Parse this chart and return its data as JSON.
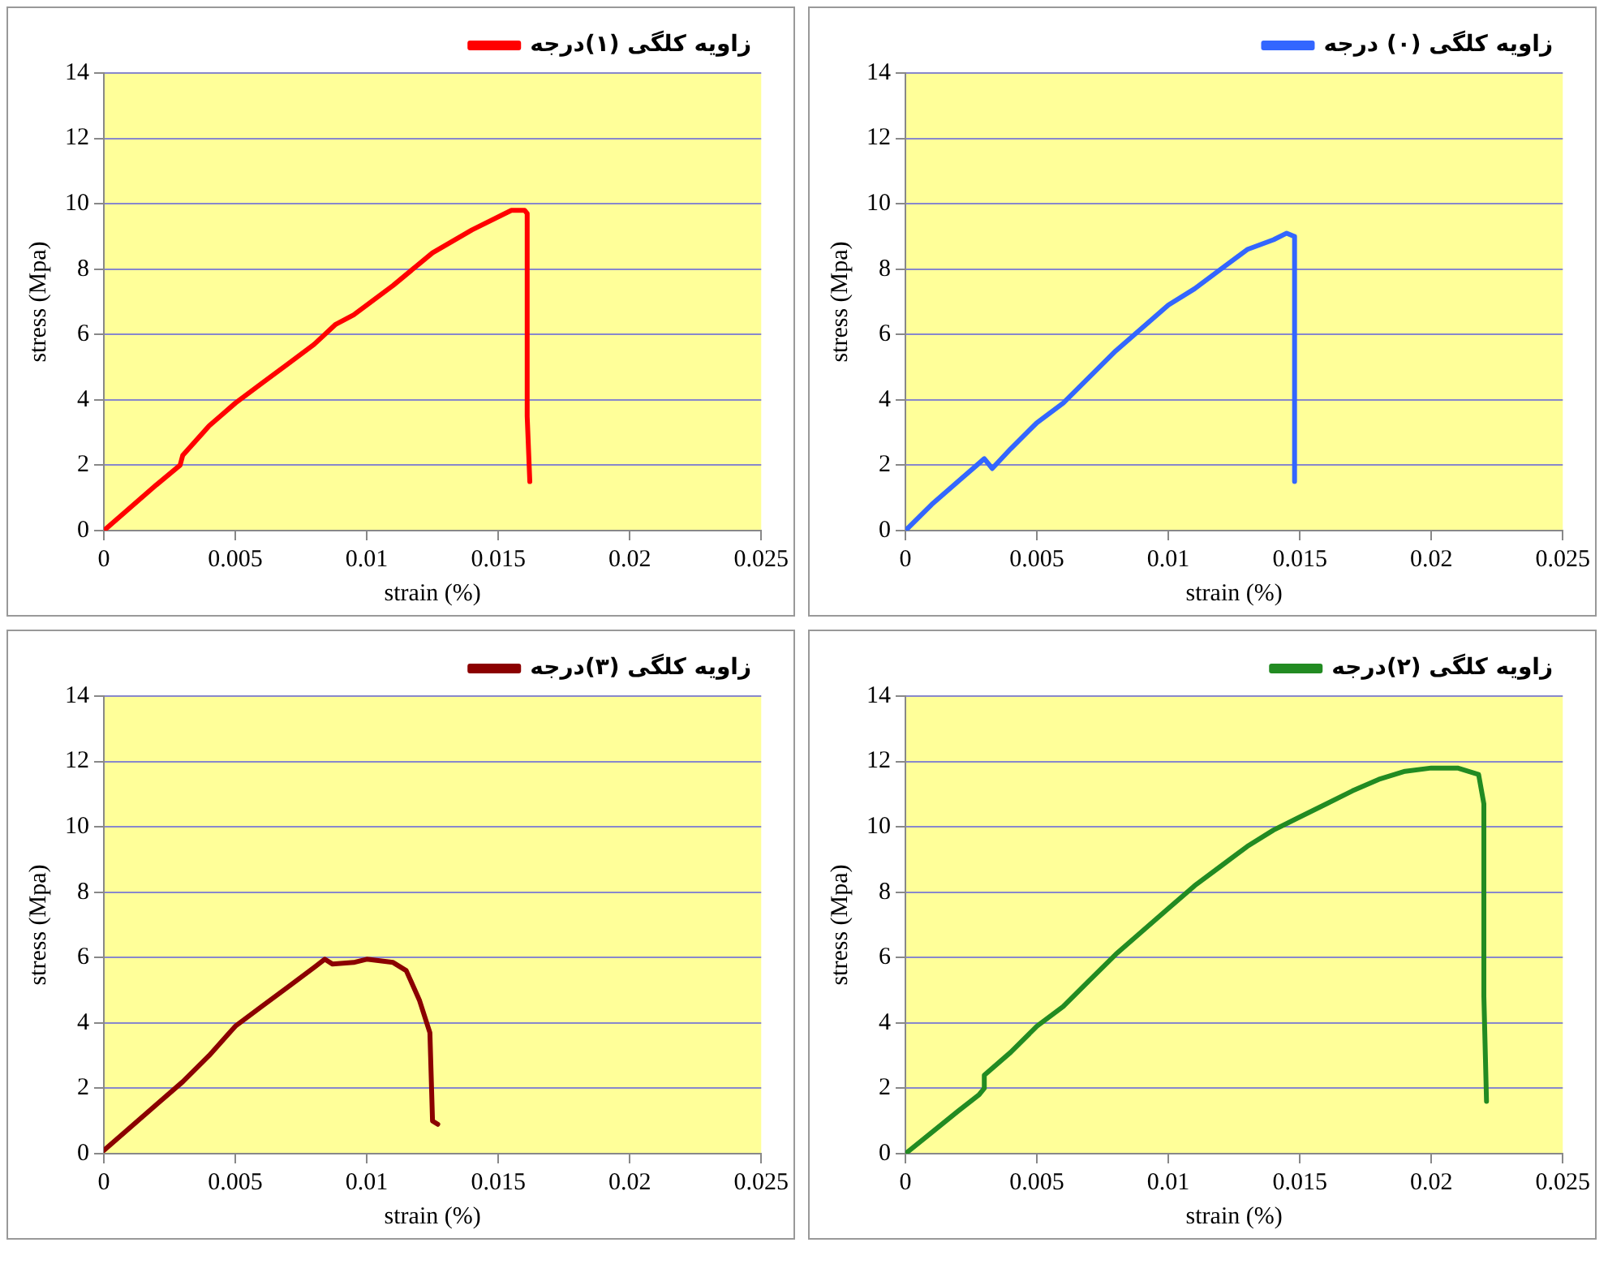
{
  "chart_data": [
    {
      "type": "line",
      "xlabel": "strain (%)",
      "ylabel": "stress (Mpa)",
      "xlim": [
        0,
        0.025
      ],
      "xticks": [
        0,
        0.005,
        0.01,
        0.015,
        0.02,
        0.025
      ],
      "ylim": [
        0,
        14
      ],
      "yticks": [
        0,
        2,
        4,
        6,
        8,
        10,
        12,
        14
      ],
      "grid": "y",
      "legend": "top right",
      "marker": "none",
      "line_style": "solid",
      "series": [
        {
          "name": "زاویه کلگی (۱)درجه",
          "color": "#ff0000",
          "x": [
            0,
            0.001,
            0.002,
            0.0029,
            0.003,
            0.004,
            0.005,
            0.006,
            0.007,
            0.008,
            0.0088,
            0.0095,
            0.011,
            0.0125,
            0.014,
            0.0155,
            0.016,
            0.0161,
            0.0161,
            0.0162
          ],
          "values": [
            0,
            0.7,
            1.4,
            2.0,
            2.3,
            3.2,
            3.9,
            4.5,
            5.1,
            5.7,
            6.3,
            6.6,
            7.5,
            8.5,
            9.2,
            9.8,
            9.8,
            9.7,
            3.5,
            1.5
          ]
        }
      ]
    },
    {
      "type": "line",
      "xlabel": "strain (%)",
      "ylabel": "stress (Mpa)",
      "xlim": [
        0,
        0.025
      ],
      "xticks": [
        0,
        0.005,
        0.01,
        0.015,
        0.02,
        0.025
      ],
      "ylim": [
        0,
        14
      ],
      "yticks": [
        0,
        2,
        4,
        6,
        8,
        10,
        12,
        14
      ],
      "grid": "y",
      "legend": "top right",
      "marker": "none",
      "line_style": "solid",
      "series": [
        {
          "name": "زاویه کلگی (۰) درجه",
          "color": "#3366ff",
          "x": [
            0,
            0.001,
            0.002,
            0.003,
            0.0033,
            0.004,
            0.005,
            0.006,
            0.007,
            0.008,
            0.009,
            0.01,
            0.011,
            0.012,
            0.013,
            0.014,
            0.0145,
            0.0148,
            0.0148
          ],
          "values": [
            0,
            0.8,
            1.5,
            2.2,
            1.9,
            2.5,
            3.3,
            3.9,
            4.7,
            5.5,
            6.2,
            6.9,
            7.4,
            8.0,
            8.6,
            8.9,
            9.1,
            9.0,
            1.5
          ]
        }
      ]
    },
    {
      "type": "line",
      "xlabel": "strain (%)",
      "ylabel": "stress (Mpa)",
      "xlim": [
        0,
        0.025
      ],
      "xticks": [
        0,
        0.005,
        0.01,
        0.015,
        0.02,
        0.025
      ],
      "ylim": [
        0,
        14
      ],
      "yticks": [
        0,
        2,
        4,
        6,
        8,
        10,
        12,
        14
      ],
      "grid": "y",
      "legend": "top right",
      "marker": "none",
      "line_style": "solid",
      "series": [
        {
          "name": "زاویه کلگی (۳)درجه",
          "color": "#8b0000",
          "x": [
            0,
            0.001,
            0.002,
            0.003,
            0.004,
            0.005,
            0.006,
            0.007,
            0.008,
            0.0084,
            0.0087,
            0.0095,
            0.01,
            0.011,
            0.0115,
            0.012,
            0.0124,
            0.0125,
            0.0127
          ],
          "values": [
            0.1,
            0.8,
            1.5,
            2.2,
            3.0,
            3.9,
            4.5,
            5.1,
            5.7,
            5.95,
            5.8,
            5.85,
            5.95,
            5.85,
            5.6,
            4.7,
            3.7,
            1.0,
            0.9
          ]
        }
      ]
    },
    {
      "type": "line",
      "xlabel": "strain (%)",
      "ylabel": "stress (Mpa)",
      "xlim": [
        0,
        0.025
      ],
      "xticks": [
        0,
        0.005,
        0.01,
        0.015,
        0.02,
        0.025
      ],
      "ylim": [
        0,
        14
      ],
      "yticks": [
        0,
        2,
        4,
        6,
        8,
        10,
        12,
        14
      ],
      "grid": "y",
      "legend": "top right",
      "marker": "none",
      "line_style": "solid",
      "series": [
        {
          "name": "زاویه کلگی (۲)درجه",
          "color": "#228b22",
          "x": [
            0,
            0.001,
            0.002,
            0.0028,
            0.003,
            0.003,
            0.004,
            0.005,
            0.006,
            0.007,
            0.008,
            0.009,
            0.01,
            0.011,
            0.012,
            0.013,
            0.014,
            0.015,
            0.016,
            0.017,
            0.018,
            0.019,
            0.02,
            0.021,
            0.0218,
            0.022,
            0.022,
            0.0221
          ],
          "values": [
            0,
            0.65,
            1.3,
            1.8,
            2.0,
            2.4,
            3.1,
            3.9,
            4.5,
            5.3,
            6.1,
            6.8,
            7.5,
            8.2,
            8.8,
            9.4,
            9.9,
            10.3,
            10.7,
            11.1,
            11.45,
            11.7,
            11.8,
            11.8,
            11.6,
            10.7,
            4.8,
            1.6
          ]
        }
      ]
    }
  ]
}
